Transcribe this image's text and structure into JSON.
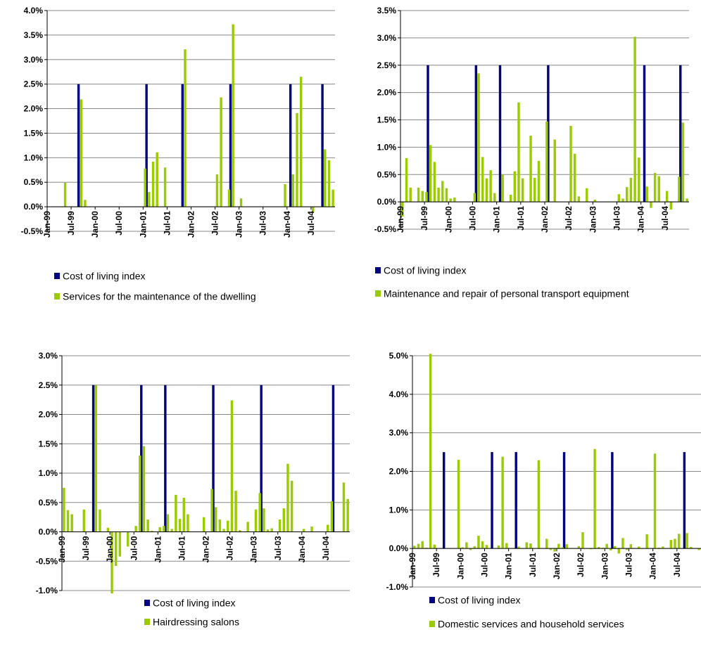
{
  "colors": {
    "index": "#000080",
    "service": "#99CC00",
    "axis": "#000000",
    "grid": "#888888"
  },
  "chart_data": [
    {
      "type": "bar",
      "x_tick_labels": [
        "Jan-99",
        "Jul-99",
        "Jan-00",
        "Jul-00",
        "Jan-01",
        "Jul-01",
        "Jan-02",
        "Jul-02",
        "Jan-03",
        "Jul-03",
        "Jan-04",
        "Jul-04"
      ],
      "y_tick_labels": [
        "4.0%",
        "3.5%",
        "3.0%",
        "2.5%",
        "2.0%",
        "1.5%",
        "1.0%",
        "0.5%",
        "0.0%",
        "-0.5%"
      ],
      "ylim": [
        -0.5,
        4.0
      ],
      "grid": "horizontal",
      "legend_position": "bottom",
      "months": 72,
      "series": [
        {
          "name": "Cost of living index",
          "values": [
            [
              8,
              2.5
            ],
            [
              25,
              2.5
            ],
            [
              34,
              2.5
            ],
            [
              46,
              2.5
            ],
            [
              61,
              2.5
            ],
            [
              69,
              2.5
            ]
          ]
        },
        {
          "name": "Services for the maintenance of the dwelling",
          "values": [
            [
              5,
              0.49
            ],
            [
              9,
              2.19
            ],
            [
              10,
              0.14
            ],
            [
              25,
              0.78
            ],
            [
              26,
              0.3
            ],
            [
              27,
              0.92
            ],
            [
              28,
              1.11
            ],
            [
              30,
              0.8
            ],
            [
              35,
              3.21
            ],
            [
              43,
              0.66
            ],
            [
              44,
              2.23
            ],
            [
              46,
              0.35
            ],
            [
              47,
              3.72
            ],
            [
              49,
              0.17
            ],
            [
              60,
              0.46
            ],
            [
              62,
              0.66
            ],
            [
              63,
              1.91
            ],
            [
              64,
              2.65
            ],
            [
              67,
              -0.1
            ],
            [
              70,
              1.17
            ],
            [
              71,
              0.95
            ],
            [
              72,
              0.35
            ]
          ]
        }
      ]
    },
    {
      "type": "bar",
      "x_tick_labels": [
        "Jan-99",
        "Jul-99",
        "Jan-00",
        "Jul-00",
        "Jan-01",
        "Jul-01",
        "Jan-02",
        "Jul-02",
        "Jan-03",
        "Jul-03",
        "Jan-04",
        "Jul-04"
      ],
      "y_tick_labels": [
        "3.5%",
        "3.0%",
        "2.5%",
        "2.0%",
        "1.5%",
        "1.0%",
        "0.5%",
        "0.0%",
        "-0.5%"
      ],
      "ylim": [
        -0.5,
        3.5
      ],
      "grid": "horizontal",
      "legend_position": "bottom",
      "months": 72,
      "series": [
        {
          "name": "Cost of living index",
          "values": [
            [
              7,
              2.5
            ],
            [
              19,
              2.5
            ],
            [
              25,
              2.5
            ],
            [
              37,
              2.5
            ],
            [
              61,
              2.5
            ],
            [
              70,
              2.5
            ]
          ]
        },
        {
          "name": "Maintenance and repair of personal transport equipment",
          "values": [
            [
              1,
              -0.27
            ],
            [
              2,
              0.8
            ],
            [
              3,
              0.26
            ],
            [
              5,
              0.26
            ],
            [
              6,
              0.2
            ],
            [
              7,
              0.18
            ],
            [
              8,
              1.04
            ],
            [
              9,
              0.73
            ],
            [
              10,
              0.26
            ],
            [
              11,
              0.38
            ],
            [
              12,
              0.25
            ],
            [
              13,
              0.06
            ],
            [
              14,
              0.08
            ],
            [
              19,
              0.16
            ],
            [
              20,
              2.35
            ],
            [
              21,
              0.82
            ],
            [
              22,
              0.43
            ],
            [
              23,
              0.58
            ],
            [
              24,
              0.16
            ],
            [
              26,
              0.5
            ],
            [
              28,
              0.13
            ],
            [
              29,
              0.56
            ],
            [
              30,
              1.82
            ],
            [
              31,
              0.43
            ],
            [
              33,
              1.21
            ],
            [
              34,
              0.44
            ],
            [
              35,
              0.75
            ],
            [
              37,
              1.47
            ],
            [
              39,
              1.14
            ],
            [
              43,
              1.39
            ],
            [
              44,
              0.88
            ],
            [
              45,
              0.1
            ],
            [
              47,
              0.25
            ],
            [
              49,
              0.04
            ],
            [
              55,
              0.14
            ],
            [
              56,
              0.06
            ],
            [
              57,
              0.27
            ],
            [
              58,
              0.44
            ],
            [
              59,
              3.02
            ],
            [
              60,
              0.81
            ],
            [
              62,
              0.28
            ],
            [
              63,
              -0.11
            ],
            [
              64,
              0.53
            ],
            [
              65,
              0.47
            ],
            [
              67,
              0.2
            ],
            [
              68,
              -0.14
            ],
            [
              70,
              0.46
            ],
            [
              71,
              1.45
            ],
            [
              72,
              0.06
            ]
          ]
        }
      ]
    },
    {
      "type": "bar",
      "x_tick_labels": [
        "Jan-99",
        "Jul-99",
        "Jan-00",
        "Jul-00",
        "Jan-01",
        "Jul-01",
        "Jan-02",
        "Jul-02",
        "Jan-03",
        "Jul-03",
        "Jan-04",
        "Jul-04"
      ],
      "y_tick_labels": [
        "3.0%",
        "2.5%",
        "2.0%",
        "1.5%",
        "1.0%",
        "0.5%",
        "0.0%",
        "-0.5%",
        "-1.0%"
      ],
      "ylim": [
        -1.0,
        3.0
      ],
      "grid": "horizontal",
      "legend_position": "bottom",
      "months": 72,
      "series": [
        {
          "name": "Cost of living index",
          "values": [
            [
              8,
              2.5
            ],
            [
              20,
              2.5
            ],
            [
              26,
              2.5
            ],
            [
              38,
              2.5
            ],
            [
              50,
              2.5
            ],
            [
              68,
              2.5
            ]
          ]
        },
        {
          "name": "Hairdressing salons",
          "values": [
            [
              1,
              0.75
            ],
            [
              2,
              0.37
            ],
            [
              3,
              0.3
            ],
            [
              6,
              0.38
            ],
            [
              9,
              2.5
            ],
            [
              10,
              0.38
            ],
            [
              12,
              0.07
            ],
            [
              13,
              -1.05
            ],
            [
              14,
              -0.58
            ],
            [
              15,
              -0.42
            ],
            [
              17,
              -0.25
            ],
            [
              19,
              0.1
            ],
            [
              20,
              1.3
            ],
            [
              21,
              1.46
            ],
            [
              22,
              0.21
            ],
            [
              23,
              0.02
            ],
            [
              25,
              0.08
            ],
            [
              26,
              0.1
            ],
            [
              27,
              0.3
            ],
            [
              28,
              0.05
            ],
            [
              29,
              0.63
            ],
            [
              30,
              0.22
            ],
            [
              31,
              0.58
            ],
            [
              32,
              0.3
            ],
            [
              36,
              0.25
            ],
            [
              38,
              0.73
            ],
            [
              39,
              0.42
            ],
            [
              40,
              0.21
            ],
            [
              41,
              0.05
            ],
            [
              42,
              0.19
            ],
            [
              43,
              2.24
            ],
            [
              44,
              0.7
            ],
            [
              45,
              0.03
            ],
            [
              47,
              0.17
            ],
            [
              49,
              0.38
            ],
            [
              50,
              0.66
            ],
            [
              51,
              0.4
            ],
            [
              52,
              0.04
            ],
            [
              53,
              0.06
            ],
            [
              55,
              0.21
            ],
            [
              56,
              0.4
            ],
            [
              57,
              1.16
            ],
            [
              58,
              0.87
            ],
            [
              61,
              0.05
            ],
            [
              63,
              0.09
            ],
            [
              67,
              0.12
            ],
            [
              68,
              0.52
            ],
            [
              71,
              0.84
            ],
            [
              72,
              0.56
            ]
          ]
        }
      ]
    },
    {
      "type": "bar",
      "x_tick_labels": [
        "Jan-99",
        "Jul-99",
        "Jan-00",
        "Jul-00",
        "Jan-01",
        "Jul-01",
        "Jan-02",
        "Jul-02",
        "Jan-03",
        "Jul-03",
        "Jan-04",
        "Jul-04"
      ],
      "y_tick_labels": [
        "5.0%",
        "4.0%",
        "3.0%",
        "2.0%",
        "1.0%",
        "0.0%",
        "-1.0%"
      ],
      "ylim": [
        -1.0,
        5.0
      ],
      "grid": "horizontal",
      "legend_position": "bottom",
      "months": 72,
      "series": [
        {
          "name": "Cost of living index",
          "values": [
            [
              8,
              2.5
            ],
            [
              20,
              2.5
            ],
            [
              26,
              2.5
            ],
            [
              38,
              2.5
            ],
            [
              50,
              2.5
            ],
            [
              68,
              2.5
            ]
          ]
        },
        {
          "name": "Domestic services and household services",
          "values": [
            [
              1,
              0.07
            ],
            [
              2,
              0.12
            ],
            [
              3,
              0.19
            ],
            [
              4,
              0.02
            ],
            [
              5,
              5.05
            ],
            [
              6,
              0.1
            ],
            [
              12,
              2.3
            ],
            [
              13,
              0.03
            ],
            [
              14,
              0.16
            ],
            [
              15,
              -0.04
            ],
            [
              16,
              0.06
            ],
            [
              17,
              0.33
            ],
            [
              18,
              0.19
            ],
            [
              19,
              0.09
            ],
            [
              22,
              0.08
            ],
            [
              23,
              2.38
            ],
            [
              24,
              0.14
            ],
            [
              27,
              0.05
            ],
            [
              29,
              0.16
            ],
            [
              30,
              0.13
            ],
            [
              32,
              2.29
            ],
            [
              34,
              0.25
            ],
            [
              35,
              -0.04
            ],
            [
              36,
              -0.08
            ],
            [
              37,
              0.12
            ],
            [
              38,
              0.03
            ],
            [
              39,
              0.11
            ],
            [
              42,
              0.06
            ],
            [
              43,
              0.42
            ],
            [
              45,
              -0.02
            ],
            [
              46,
              2.58
            ],
            [
              47,
              0.04
            ],
            [
              48,
              0.02
            ],
            [
              49,
              0.12
            ],
            [
              50,
              -0.05
            ],
            [
              51,
              0.06
            ],
            [
              52,
              -0.13
            ],
            [
              53,
              0.27
            ],
            [
              54,
              -0.04
            ],
            [
              55,
              0.11
            ],
            [
              57,
              0.05
            ],
            [
              59,
              0.37
            ],
            [
              61,
              2.46
            ],
            [
              62,
              0.02
            ],
            [
              63,
              0.05
            ],
            [
              65,
              0.22
            ],
            [
              66,
              0.25
            ],
            [
              67,
              0.38
            ],
            [
              69,
              0.4
            ],
            [
              70,
              0.04
            ],
            [
              72,
              -0.04
            ]
          ]
        }
      ]
    }
  ]
}
